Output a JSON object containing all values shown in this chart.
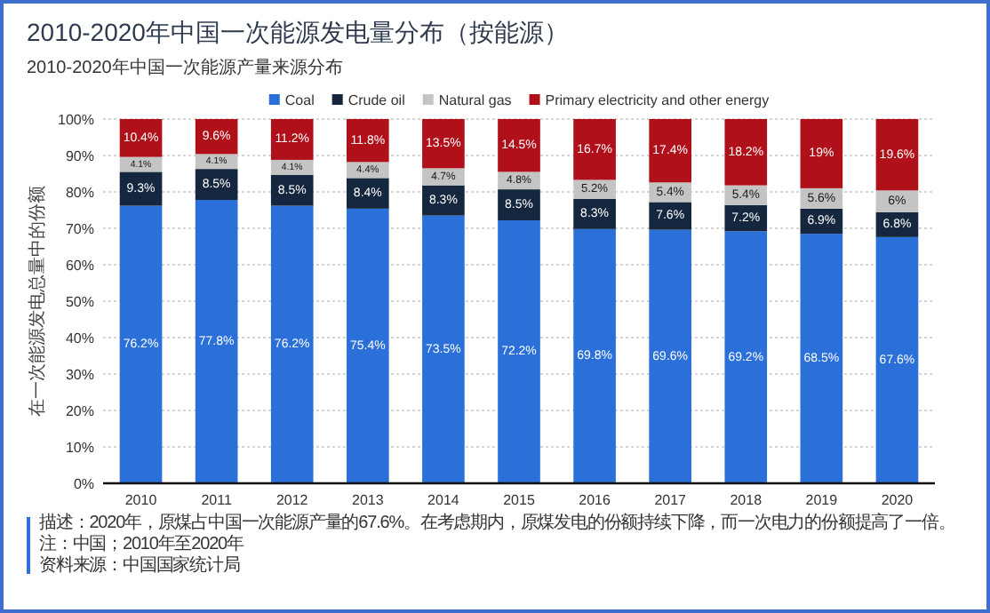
{
  "chart_data": {
    "type": "bar",
    "stacked": true,
    "title": "2010-2020年中国一次能源发电量分布（按能源）",
    "subtitle": "2010-2020年中国一次能源产量来源分布",
    "ylabel": "在一次能源发电总量中的份额",
    "categories": [
      "2010",
      "2011",
      "2012",
      "2013",
      "2014",
      "2015",
      "2016",
      "2017",
      "2018",
      "2019",
      "2020"
    ],
    "series": [
      {
        "name": "Coal",
        "color": "#2b6fd8",
        "values": [
          76.2,
          77.8,
          76.2,
          75.4,
          73.5,
          72.2,
          69.8,
          69.6,
          69.2,
          68.5,
          67.6
        ],
        "value_labels": [
          "76.2%",
          "77.8%",
          "76.2%",
          "75.4%",
          "73.5%",
          "72.2%",
          "69.8%",
          "69.6%",
          "69.2%",
          "68.5%",
          "67.6%"
        ]
      },
      {
        "name": "Crude oil",
        "color": "#14273e",
        "values": [
          9.3,
          8.5,
          8.5,
          8.4,
          8.3,
          8.5,
          8.3,
          7.6,
          7.2,
          6.9,
          6.8
        ],
        "value_labels": [
          "9.3%",
          "8.5%",
          "8.5%",
          "8.4%",
          "8.3%",
          "8.5%",
          "8.3%",
          "7.6%",
          "7.2%",
          "6.9%",
          "6.8%"
        ]
      },
      {
        "name": "Natural gas",
        "color": "#c4c4c4",
        "values": [
          4.1,
          4.1,
          4.1,
          4.4,
          4.7,
          4.8,
          5.2,
          5.4,
          5.4,
          5.6,
          6
        ],
        "value_labels": [
          "4.1%",
          "4.1%",
          "4.1%",
          "4.4%",
          "4.7%",
          "4.8%",
          "5.2%",
          "5.4%",
          "5.4%",
          "5.6%",
          "6%"
        ]
      },
      {
        "name": "Primary electricity and other energy",
        "color": "#b0101a",
        "values": [
          10.4,
          9.6,
          11.2,
          11.8,
          13.5,
          14.5,
          16.7,
          17.4,
          18.2,
          19,
          19.6
        ],
        "value_labels": [
          "10.4%",
          "9.6%",
          "11.2%",
          "11.8%",
          "13.5%",
          "14.5%",
          "16.7%",
          "17.4%",
          "18.2%",
          "19%",
          "19.6%"
        ]
      }
    ],
    "ylim": [
      0,
      100
    ],
    "yticks": [
      {
        "value": 0,
        "label": "0%"
      },
      {
        "value": 10,
        "label": "10%"
      },
      {
        "value": 20,
        "label": "20%"
      },
      {
        "value": 30,
        "label": "30%"
      },
      {
        "value": 40,
        "label": "40%"
      },
      {
        "value": 50,
        "label": "50%"
      },
      {
        "value": 60,
        "label": "60%"
      },
      {
        "value": 70,
        "label": "70%"
      },
      {
        "value": 80,
        "label": "80%"
      },
      {
        "value": 90,
        "label": "90%"
      },
      {
        "value": 100,
        "label": "100%"
      }
    ],
    "grid": "y",
    "legend": "top",
    "annotations": [
      "描述：2020年，原煤占中国一次能源产量的67.6%。在考虑期内，原煤发电的份额持续下降，而一次电力的份额提高了一倍。",
      "注：中国；2010年至2020年",
      "资料来源：中国国家统计局"
    ]
  }
}
